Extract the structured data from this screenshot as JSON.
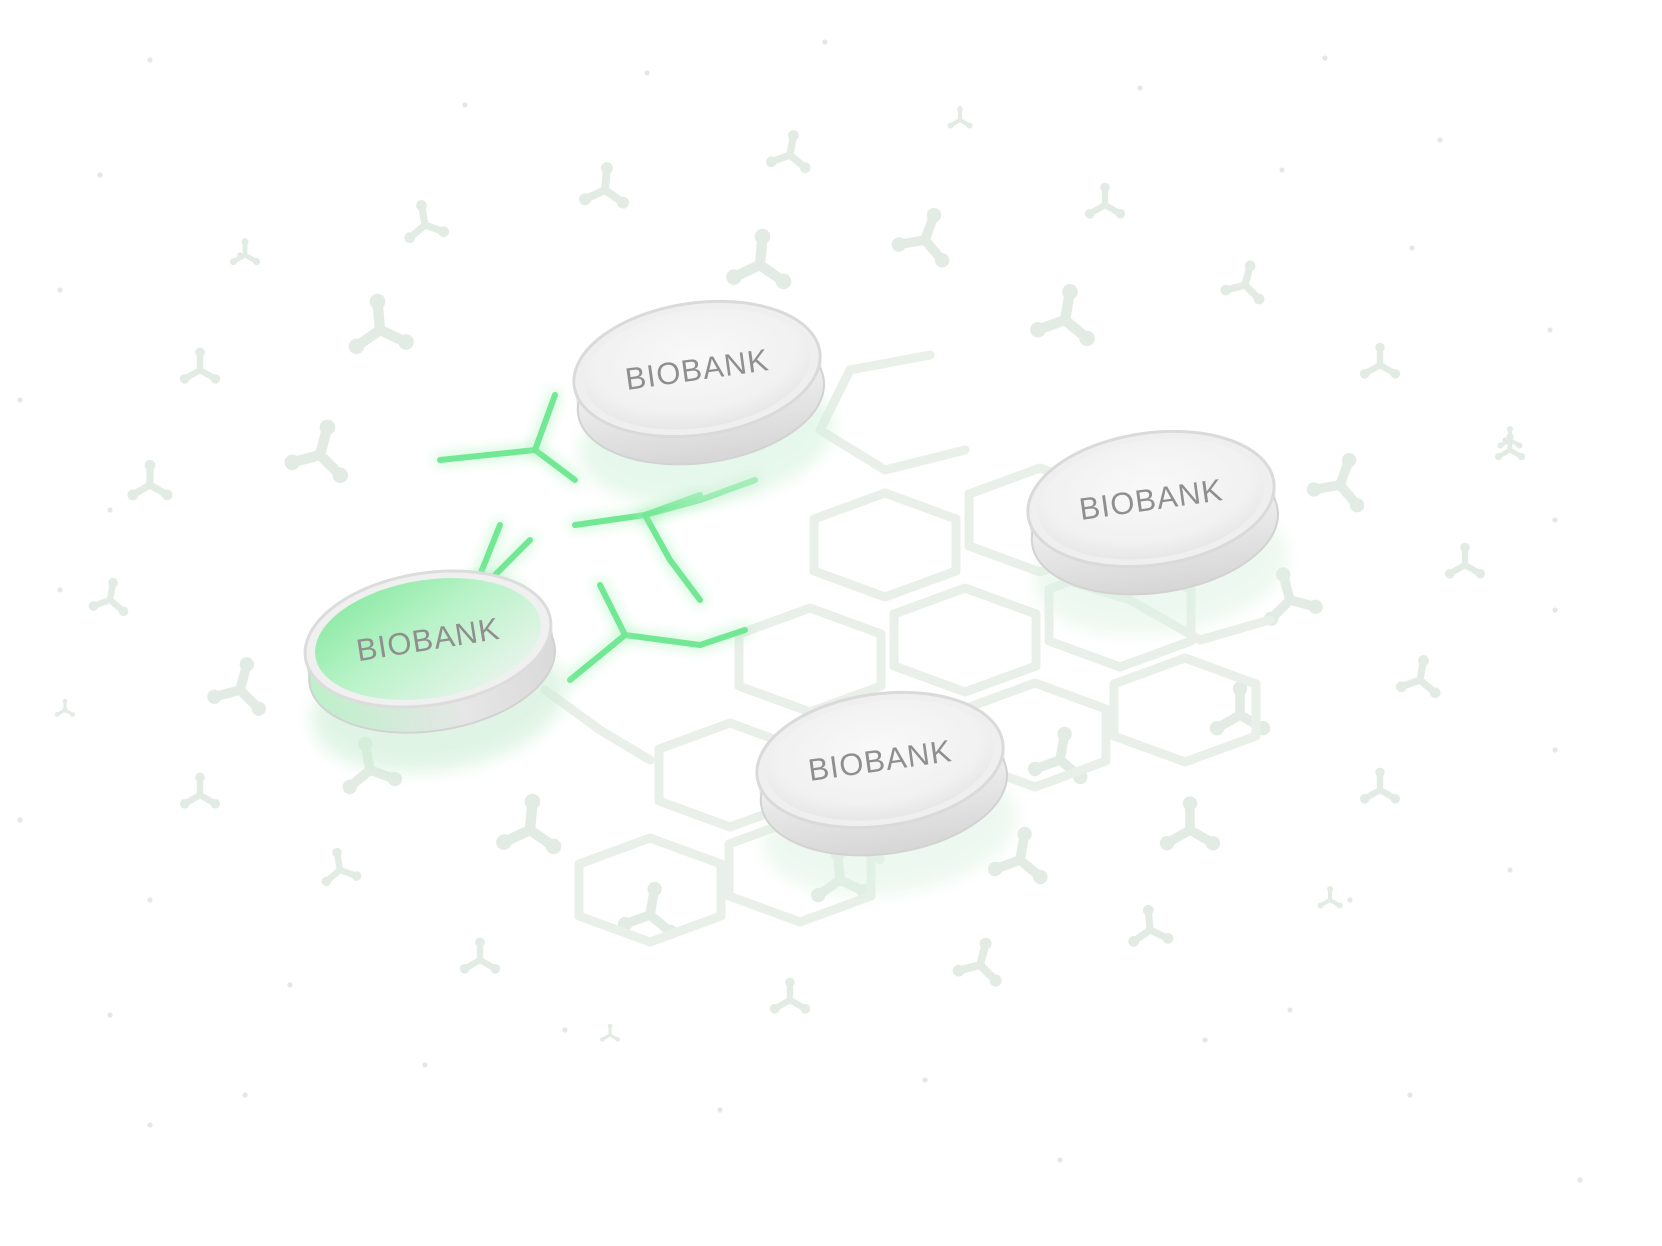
{
  "discs": [
    {
      "label": "BIOBANK",
      "state": "active"
    },
    {
      "label": "BIOBANK",
      "state": "idle"
    },
    {
      "label": "BIOBANK",
      "state": "idle"
    },
    {
      "label": "BIOBANK",
      "state": "idle"
    }
  ],
  "colors": {
    "background": "#ffffff",
    "network_idle": "#e9efe9",
    "network_active": "#72e894",
    "antibody_faint": "#e3ece4",
    "disc_body": "#eeeeee",
    "disc_rim": "#d8d8d8",
    "disc_active": "#8ff0a8",
    "label": "#8f8f8f",
    "dots": "#e6e6e6"
  },
  "icons": {
    "node": "y-shaped-antibody-icon"
  }
}
